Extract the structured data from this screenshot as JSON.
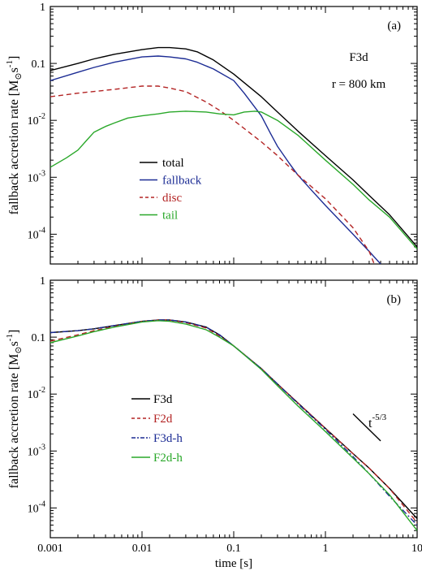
{
  "chart_data": [
    {
      "type": "line",
      "panel_label": "(a)",
      "title": "",
      "xlabel": "",
      "ylabel": "fallback accretion rate [M",
      "ylabel_sub": "⊙",
      "ylabel_unit": "s",
      "ylabel_sup": "-1",
      "ylabel_close": "]",
      "xscale": "log",
      "yscale": "log",
      "xlim": [
        0.001,
        10
      ],
      "ylim": [
        3e-05,
        1
      ],
      "y_ticks": [
        {
          "v": 1,
          "base": "1",
          "exp": ""
        },
        {
          "v": 0.1,
          "base": "0.1",
          "exp": ""
        },
        {
          "v": 0.01,
          "base": "10",
          "exp": "-2"
        },
        {
          "v": 0.001,
          "base": "10",
          "exp": "-3"
        },
        {
          "v": 0.0001,
          "base": "10",
          "exp": "-4"
        }
      ],
      "annotations": [
        "F3d",
        "r = 800 km"
      ],
      "legend_position": "center-left",
      "series": [
        {
          "name": "total",
          "color": "#000000",
          "dash": "",
          "x": [
            0.001,
            0.002,
            0.003,
            0.005,
            0.01,
            0.015,
            0.02,
            0.03,
            0.04,
            0.06,
            0.1,
            0.2,
            0.3,
            0.5,
            1,
            2,
            3,
            5,
            10
          ],
          "y": [
            0.075,
            0.1,
            0.12,
            0.145,
            0.175,
            0.19,
            0.19,
            0.18,
            0.16,
            0.115,
            0.065,
            0.026,
            0.014,
            0.0065,
            0.0024,
            0.0009,
            0.00048,
            0.00022,
            6e-05
          ]
        },
        {
          "name": "fallback",
          "color": "#1c2c94",
          "dash": "",
          "x": [
            0.001,
            0.002,
            0.003,
            0.005,
            0.01,
            0.015,
            0.02,
            0.03,
            0.04,
            0.06,
            0.1,
            0.13,
            0.2,
            0.25,
            0.3,
            0.4,
            0.5,
            0.7,
            1,
            2,
            3,
            4
          ],
          "y": [
            0.05,
            0.07,
            0.085,
            0.105,
            0.13,
            0.135,
            0.13,
            0.12,
            0.105,
            0.08,
            0.05,
            0.03,
            0.012,
            0.006,
            0.0035,
            0.0018,
            0.0011,
            0.0006,
            0.00032,
            0.0001,
            5e-05,
            3e-05
          ]
        },
        {
          "name": "disc",
          "color": "#b32424",
          "dash": "6,4",
          "x": [
            0.001,
            0.002,
            0.005,
            0.01,
            0.015,
            0.02,
            0.03,
            0.05,
            0.07,
            0.1,
            0.2,
            0.3,
            0.5,
            1,
            2,
            3,
            3.4
          ],
          "y": [
            0.026,
            0.03,
            0.035,
            0.04,
            0.04,
            0.037,
            0.032,
            0.021,
            0.015,
            0.01,
            0.0042,
            0.0024,
            0.0011,
            0.00042,
            0.00013,
            5e-05,
            3e-05
          ]
        },
        {
          "name": "tail",
          "color": "#2aa82a",
          "dash": "",
          "x": [
            0.001,
            0.0015,
            0.002,
            0.0025,
            0.003,
            0.004,
            0.005,
            0.007,
            0.01,
            0.015,
            0.02,
            0.03,
            0.05,
            0.07,
            0.1,
            0.13,
            0.17,
            0.2,
            0.3,
            0.5,
            1,
            2,
            3,
            5,
            10
          ],
          "y": [
            0.0015,
            0.0022,
            0.003,
            0.0045,
            0.0062,
            0.0078,
            0.009,
            0.011,
            0.012,
            0.013,
            0.014,
            0.0145,
            0.014,
            0.013,
            0.0125,
            0.014,
            0.0145,
            0.014,
            0.01,
            0.0055,
            0.002,
            0.00075,
            0.0004,
            0.0002,
            5.5e-05
          ]
        }
      ]
    },
    {
      "type": "line",
      "panel_label": "(b)",
      "title": "",
      "xlabel": "time [s]",
      "ylabel": "fallback accretion rate [M",
      "ylabel_sub": "⊙",
      "ylabel_unit": "s",
      "ylabel_sup": "-1",
      "ylabel_close": "]",
      "xscale": "log",
      "yscale": "log",
      "xlim": [
        0.001,
        10
      ],
      "ylim": [
        3e-05,
        1
      ],
      "x_ticks": [
        {
          "v": 0.001,
          "label": "0.001"
        },
        {
          "v": 0.01,
          "label": "0.01"
        },
        {
          "v": 0.1,
          "label": "0.1"
        },
        {
          "v": 1,
          "label": "1"
        },
        {
          "v": 10,
          "label": "10"
        }
      ],
      "y_ticks": [
        {
          "v": 1,
          "base": "1",
          "exp": ""
        },
        {
          "v": 0.1,
          "base": "0.1",
          "exp": ""
        },
        {
          "v": 0.01,
          "base": "10",
          "exp": "-2"
        },
        {
          "v": 0.001,
          "base": "10",
          "exp": "-3"
        },
        {
          "v": 0.0001,
          "base": "10",
          "exp": "-4"
        }
      ],
      "slope_label": {
        "base": "t",
        "exp": "-5/3"
      },
      "slope_segment": {
        "x": [
          2,
          4
        ],
        "y": [
          0.0045,
          0.0015
        ]
      },
      "legend_position": "center-left",
      "series": [
        {
          "name": "F3d",
          "color": "#000000",
          "dash": "",
          "x": [
            0.001,
            0.002,
            0.003,
            0.005,
            0.01,
            0.015,
            0.02,
            0.03,
            0.05,
            0.07,
            0.1,
            0.2,
            0.3,
            0.5,
            1,
            2,
            3,
            5,
            10
          ],
          "y": [
            0.12,
            0.13,
            0.14,
            0.16,
            0.19,
            0.2,
            0.2,
            0.185,
            0.15,
            0.11,
            0.07,
            0.028,
            0.015,
            0.007,
            0.0025,
            0.0009,
            0.0005,
            0.00022,
            6.5e-05
          ]
        },
        {
          "name": "F2d",
          "color": "#b32424",
          "dash": "6,4",
          "x": [
            0.001,
            0.002,
            0.003,
            0.005,
            0.01,
            0.015,
            0.02,
            0.03,
            0.05,
            0.07,
            0.1,
            0.2,
            0.3,
            0.5,
            1,
            2,
            3,
            5,
            10
          ],
          "y": [
            0.085,
            0.11,
            0.13,
            0.155,
            0.19,
            0.2,
            0.2,
            0.18,
            0.145,
            0.105,
            0.07,
            0.028,
            0.015,
            0.007,
            0.0025,
            0.0009,
            0.0005,
            0.00022,
            5.5e-05
          ]
        },
        {
          "name": "F3d-h",
          "color": "#1c2c94",
          "dash": "7,3,2,3",
          "x": [
            0.001,
            0.002,
            0.003,
            0.005,
            0.01,
            0.015,
            0.02,
            0.03,
            0.05,
            0.07,
            0.1,
            0.2,
            0.3,
            0.5,
            1,
            2,
            3,
            5,
            10
          ],
          "y": [
            0.12,
            0.13,
            0.14,
            0.16,
            0.19,
            0.2,
            0.2,
            0.185,
            0.15,
            0.11,
            0.07,
            0.028,
            0.015,
            0.0068,
            0.0024,
            0.0008,
            0.0004,
            0.00016,
            5e-05
          ]
        },
        {
          "name": "F2d-h",
          "color": "#2aa82a",
          "dash": "",
          "x": [
            0.001,
            0.002,
            0.003,
            0.005,
            0.01,
            0.015,
            0.02,
            0.03,
            0.05,
            0.07,
            0.1,
            0.2,
            0.3,
            0.5,
            1,
            2,
            3,
            5,
            10
          ],
          "y": [
            0.08,
            0.105,
            0.125,
            0.15,
            0.185,
            0.195,
            0.19,
            0.17,
            0.135,
            0.1,
            0.07,
            0.027,
            0.014,
            0.0062,
            0.0022,
            0.00075,
            0.0004,
            0.00017,
            4e-05
          ]
        }
      ]
    }
  ]
}
